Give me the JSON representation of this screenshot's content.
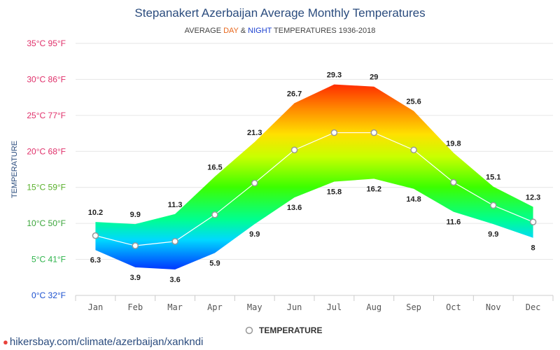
{
  "chart_data": {
    "type": "area",
    "title": "Stepanakert Azerbaijan Average Monthly Temperatures",
    "subtitle": {
      "prefix": "AVERAGE ",
      "day": "DAY",
      "amp": " & ",
      "night": "NIGHT",
      "suffix": " TEMPERATURES 1936-2018"
    },
    "ylabel": "TEMPERATURE",
    "categories": [
      "Jan",
      "Feb",
      "Mar",
      "Apr",
      "May",
      "Jun",
      "Jul",
      "Aug",
      "Sep",
      "Oct",
      "Nov",
      "Dec"
    ],
    "series": [
      {
        "name": "DAY",
        "values": [
          10.2,
          9.9,
          11.3,
          16.5,
          21.3,
          26.7,
          29.3,
          29,
          25.6,
          19.8,
          15.1,
          12.3
        ]
      },
      {
        "name": "NIGHT",
        "values": [
          6.3,
          3.9,
          3.6,
          5.9,
          9.9,
          13.6,
          15.8,
          16.2,
          14.8,
          11.6,
          9.9,
          8
        ]
      },
      {
        "name": "TEMPERATURE",
        "values": [
          8.3,
          6.9,
          7.5,
          11.2,
          15.6,
          20.2,
          22.6,
          22.6,
          20.2,
          15.7,
          12.5,
          10.2
        ]
      }
    ],
    "ylim": [
      0,
      35
    ],
    "yticks": [
      {
        "c": 0,
        "label": "0°C 32°F",
        "color": "#1a4fcf"
      },
      {
        "c": 5,
        "label": "5°C 41°F",
        "color": "#2db34a"
      },
      {
        "c": 10,
        "label": "10°C 50°F",
        "color": "#3aa53a"
      },
      {
        "c": 15,
        "label": "15°C 59°F",
        "color": "#58b02a"
      },
      {
        "c": 20,
        "label": "20°C 68°F",
        "color": "#e0306a"
      },
      {
        "c": 25,
        "label": "25°C 77°F",
        "color": "#e0306a"
      },
      {
        "c": 30,
        "label": "30°C 86°F",
        "color": "#e0306a"
      },
      {
        "c": 35,
        "label": "35°C 95°F",
        "color": "#e0306a"
      }
    ],
    "grid": true,
    "legend": {
      "label": "TEMPERATURE",
      "position": "bottom"
    },
    "colors": {
      "day": "#e8671c",
      "night": "#1a3fd0",
      "title": "#2b4c7e",
      "line": "#ffffff",
      "grid": "#e6e6e6"
    }
  },
  "footer": {
    "source": "hikersbay.com/climate/azerbaijan/xankndi",
    "icon": "map-pin-icon"
  }
}
